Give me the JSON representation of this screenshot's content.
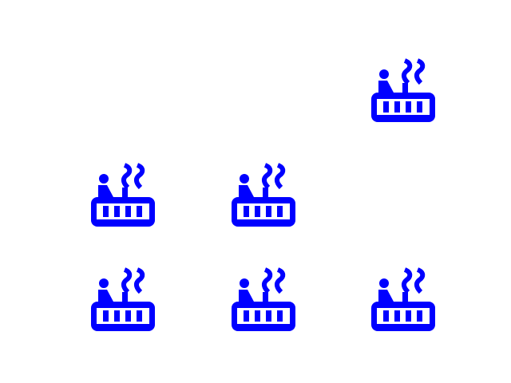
{
  "icon_color": "#0000ff",
  "background_color": "#ffffff",
  "icons": [
    {
      "name": "hot-tub-icon",
      "row": 1,
      "col": 3
    },
    {
      "name": "hot-tub-icon",
      "row": 2,
      "col": 1
    },
    {
      "name": "hot-tub-icon",
      "row": 2,
      "col": 2
    },
    {
      "name": "hot-tub-icon",
      "row": 3,
      "col": 1
    },
    {
      "name": "hot-tub-icon",
      "row": 3,
      "col": 2
    },
    {
      "name": "hot-tub-icon",
      "row": 3,
      "col": 3
    }
  ]
}
